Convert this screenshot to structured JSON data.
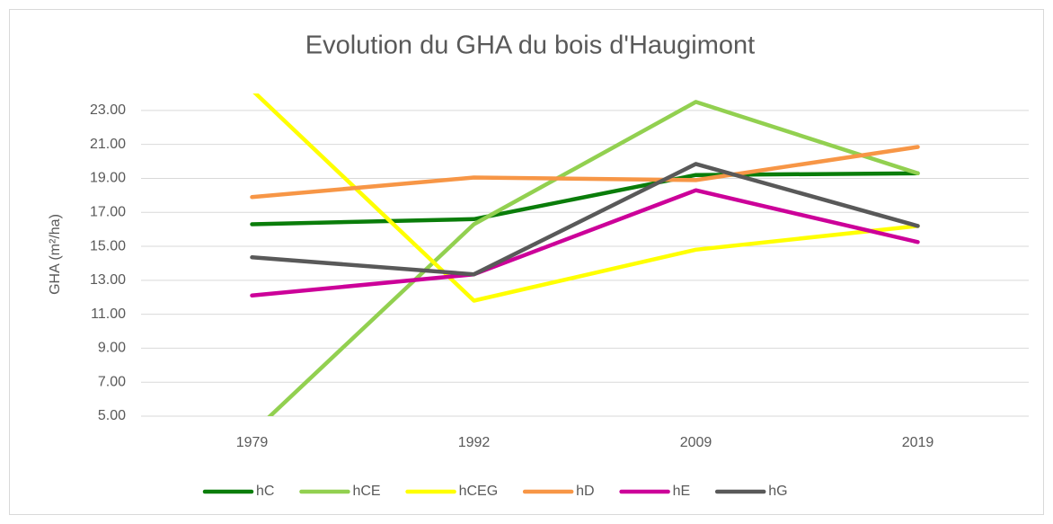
{
  "chart_data": {
    "type": "line",
    "title": "Evolution du GHA du bois d'Haugimont",
    "y_label": "GHA (m²/ha)",
    "categories": [
      "1979",
      "1992",
      "2009",
      "2019"
    ],
    "series": [
      {
        "name": "hC",
        "color": "#0a7d0a",
        "values": [
          16.3,
          16.6,
          19.2,
          19.3
        ]
      },
      {
        "name": "hCE",
        "color": "#92d050",
        "values": [
          4.0,
          16.3,
          23.5,
          19.3
        ]
      },
      {
        "name": "hCEG",
        "color": "#ffff00",
        "values": [
          24.2,
          11.8,
          14.8,
          16.2
        ]
      },
      {
        "name": "hD",
        "color": "#f79646",
        "values": [
          17.9,
          19.05,
          18.9,
          20.85
        ]
      },
      {
        "name": "hE",
        "color": "#cc0099",
        "values": [
          12.1,
          13.35,
          18.3,
          15.25
        ]
      },
      {
        "name": "hG",
        "color": "#595959",
        "values": [
          14.35,
          13.35,
          19.85,
          16.2
        ]
      }
    ],
    "ylim": [
      5,
      24
    ],
    "yticks": [
      {
        "value": 5,
        "label": "5.00"
      },
      {
        "value": 7,
        "label": "7.00"
      },
      {
        "value": 9,
        "label": "9.00"
      },
      {
        "value": 11,
        "label": "11.00"
      },
      {
        "value": 13,
        "label": "13.00"
      },
      {
        "value": 15,
        "label": "15.00"
      },
      {
        "value": 17,
        "label": "17.00"
      },
      {
        "value": 19,
        "label": "19.00"
      },
      {
        "value": 21,
        "label": "21.00"
      },
      {
        "value": 23,
        "label": "23.00"
      }
    ],
    "grid": true,
    "legend": "bottom"
  }
}
